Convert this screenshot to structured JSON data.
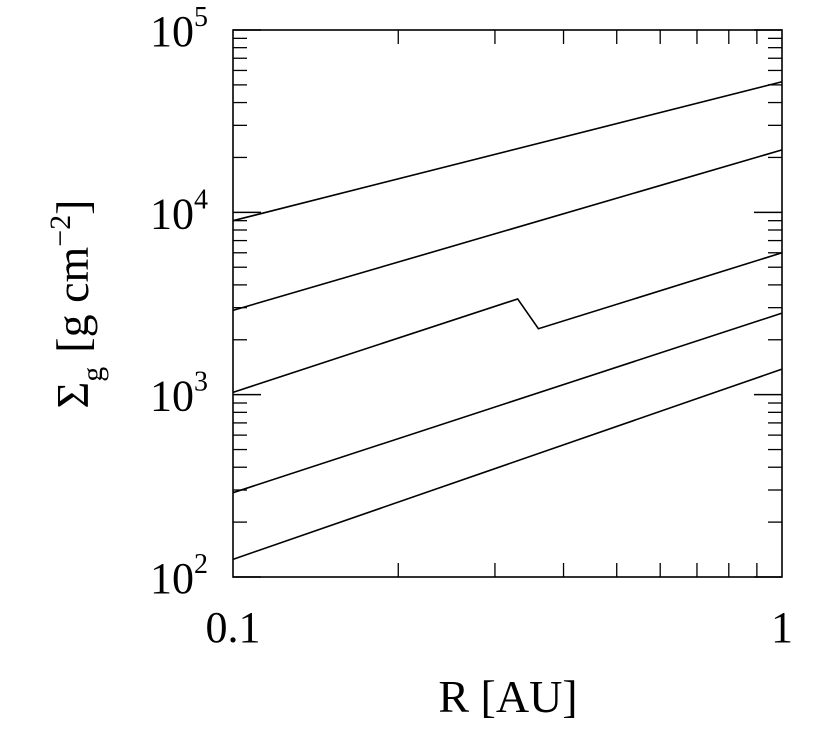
{
  "chart_data": {
    "type": "line",
    "x_scale": "log",
    "y_scale": "log",
    "xlim": [
      0.1,
      1
    ],
    "ylim": [
      100,
      100000
    ],
    "grid": false,
    "xlabel": "R [AU]",
    "ylabel": {
      "symbol": "Σ",
      "subscript": "g",
      "units_open": "[g cm",
      "units_exp": "−2",
      "units_close": "]"
    },
    "x_ticks": [
      {
        "value": 0.1,
        "label": "0.1"
      },
      {
        "value": 1,
        "label": "1"
      }
    ],
    "y_ticks": [
      {
        "value": 100,
        "base": "10",
        "exp": "2"
      },
      {
        "value": 1000,
        "base": "10",
        "exp": "3"
      },
      {
        "value": 10000,
        "base": "10",
        "exp": "4"
      },
      {
        "value": 100000,
        "base": "10",
        "exp": "5"
      }
    ],
    "series": [
      {
        "points": [
          [
            0.1,
            9000
          ],
          [
            1,
            52000
          ]
        ]
      },
      {
        "points": [
          [
            0.1,
            2900
          ],
          [
            1,
            22000
          ]
        ]
      },
      {
        "points": [
          [
            0.1,
            1030
          ],
          [
            0.33,
            3350
          ],
          [
            0.36,
            2300
          ],
          [
            1,
            6000
          ]
        ]
      },
      {
        "points": [
          [
            0.1,
            290
          ],
          [
            1,
            2800
          ]
        ]
      },
      {
        "points": [
          [
            0.1,
            125
          ],
          [
            1,
            1380
          ]
        ]
      }
    ]
  }
}
